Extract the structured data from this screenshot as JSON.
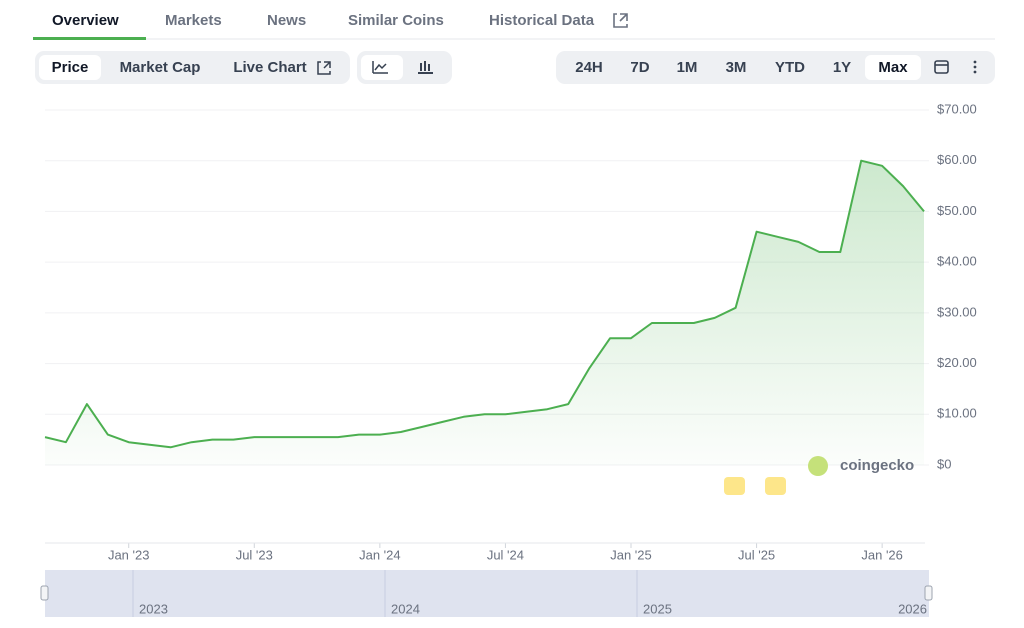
{
  "tabs": [
    "Overview",
    "Markets",
    "News",
    "Similar Coins",
    "Historical Data"
  ],
  "chart_views": [
    "Price",
    "Market Cap",
    "Live Chart"
  ],
  "ranges": [
    "24H",
    "7D",
    "1M",
    "3M",
    "YTD",
    "1Y",
    "Max"
  ],
  "watermark": "coingecko",
  "navigator_labels": [
    "2023",
    "2024",
    "2025",
    "2026"
  ],
  "chart_data": {
    "type": "line",
    "x": [
      "2022-09",
      "2022-10",
      "2022-11",
      "2022-12",
      "2023-01",
      "2023-02",
      "2023-03",
      "2023-04",
      "2023-05",
      "2023-06",
      "2023-07",
      "2023-08",
      "2023-09",
      "2023-10",
      "2023-11",
      "2023-12",
      "2024-01",
      "2024-02",
      "2024-03",
      "2024-04",
      "2024-05",
      "2024-06",
      "2024-07",
      "2024-08",
      "2024-09",
      "2024-10",
      "2024-11",
      "2024-12",
      "2025-01",
      "2025-02",
      "2025-03",
      "2025-04",
      "2025-05",
      "2025-06",
      "2025-07",
      "2025-08",
      "2025-09",
      "2025-10",
      "2025-11",
      "2025-12",
      "2026-01",
      "2026-02",
      "2026-03"
    ],
    "series": [
      {
        "name": "Price",
        "color": "#4caf50",
        "values": [
          5.5,
          4.5,
          12,
          6,
          4.5,
          4,
          3.5,
          4.5,
          5,
          5,
          5.5,
          5.5,
          5.5,
          5.5,
          5.5,
          6,
          6,
          6.5,
          7.5,
          8.5,
          9.5,
          10,
          10,
          10.5,
          11,
          12,
          19,
          25,
          25,
          28,
          28,
          28,
          29,
          31,
          46,
          45,
          44,
          42,
          42,
          60,
          59,
          55,
          50
        ]
      }
    ],
    "xlim": [
      "2022-09",
      "2026-03"
    ],
    "xticks": [
      {
        "value": "2023-01",
        "label": "Jan '23"
      },
      {
        "value": "2023-07",
        "label": "Jul '23"
      },
      {
        "value": "2024-01",
        "label": "Jan '24"
      },
      {
        "value": "2024-07",
        "label": "Jul '24"
      },
      {
        "value": "2025-01",
        "label": "Jan '25"
      },
      {
        "value": "2025-07",
        "label": "Jul '25"
      },
      {
        "value": "2026-01",
        "label": "Jan '26"
      }
    ],
    "ylim": [
      0,
      70
    ],
    "yticks": [
      {
        "value": 0,
        "label": "$0"
      },
      {
        "value": 10,
        "label": "$10.00"
      },
      {
        "value": 20,
        "label": "$20.00"
      },
      {
        "value": 30,
        "label": "$30.00"
      },
      {
        "value": 40,
        "label": "$40.00"
      },
      {
        "value": 50,
        "label": "$50.00"
      },
      {
        "value": 60,
        "label": "$60.00"
      },
      {
        "value": 70,
        "label": "$70.00"
      }
    ],
    "grid": true
  }
}
